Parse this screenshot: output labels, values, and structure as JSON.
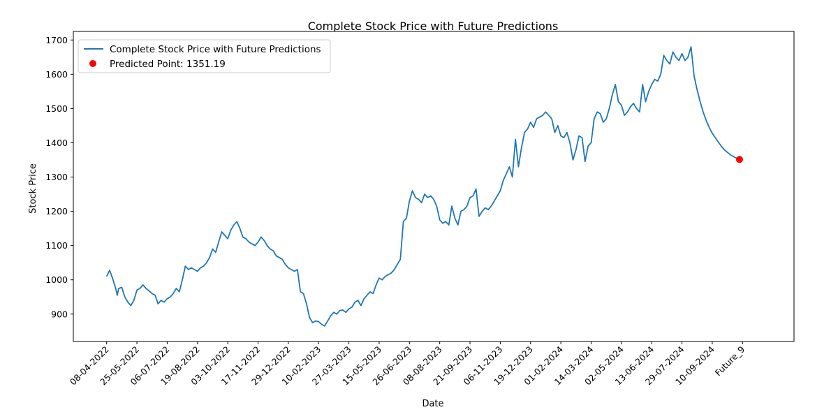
{
  "chart_data": {
    "type": "line",
    "title": "Complete Stock Price with Future Predictions",
    "xlabel": "Date",
    "ylabel": "Stock Price",
    "ylim": [
      820,
      1725
    ],
    "yticks": [
      900,
      1000,
      1100,
      1200,
      1300,
      1400,
      1500,
      1600,
      1700
    ],
    "xlim": [
      -11,
      227
    ],
    "x_tick_labels": [
      {
        "x": 0,
        "label": "08-04-2022"
      },
      {
        "x": 10,
        "label": "25-05-2022"
      },
      {
        "x": 20,
        "label": "06-07-2022"
      },
      {
        "x": 30,
        "label": "19-08-2022"
      },
      {
        "x": 40,
        "label": "03-10-2022"
      },
      {
        "x": 50,
        "label": "17-11-2022"
      },
      {
        "x": 60,
        "label": "29-12-2022"
      },
      {
        "x": 70,
        "label": "10-02-2023"
      },
      {
        "x": 80,
        "label": "27-03-2023"
      },
      {
        "x": 90,
        "label": "15-05-2023"
      },
      {
        "x": 100,
        "label": "26-06-2023"
      },
      {
        "x": 110,
        "label": "08-08-2023"
      },
      {
        "x": 120,
        "label": "21-09-2023"
      },
      {
        "x": 130,
        "label": "06-11-2023"
      },
      {
        "x": 140,
        "label": "19-12-2023"
      },
      {
        "x": 150,
        "label": "01-02-2024"
      },
      {
        "x": 160,
        "label": "14-03-2024"
      },
      {
        "x": 170,
        "label": "02-05-2024"
      },
      {
        "x": 180,
        "label": "13-06-2024"
      },
      {
        "x": 190,
        "label": "29-07-2024"
      },
      {
        "x": 200,
        "label": "10-09-2024"
      },
      {
        "x": 210,
        "label": "Future_9"
      }
    ],
    "series": [
      {
        "name": "Complete Stock Price with Future Predictions",
        "color": "#1f77b4",
        "points": [
          [
            0,
            1010
          ],
          [
            1,
            1028
          ],
          [
            2,
            1003
          ],
          [
            3,
            975
          ],
          [
            3.5,
            955
          ],
          [
            4,
            975
          ],
          [
            5,
            978
          ],
          [
            6,
            950
          ],
          [
            7,
            935
          ],
          [
            8,
            925
          ],
          [
            9,
            940
          ],
          [
            10,
            970
          ],
          [
            11,
            975
          ],
          [
            12,
            985
          ],
          [
            13,
            975
          ],
          [
            14,
            968
          ],
          [
            15,
            960
          ],
          [
            16,
            955
          ],
          [
            17,
            930
          ],
          [
            18,
            940
          ],
          [
            19,
            935
          ],
          [
            20,
            945
          ],
          [
            21,
            950
          ],
          [
            22,
            960
          ],
          [
            23,
            975
          ],
          [
            24,
            965
          ],
          [
            25,
            1000
          ],
          [
            26,
            1040
          ],
          [
            27,
            1030
          ],
          [
            28,
            1035
          ],
          [
            29,
            1030
          ],
          [
            30,
            1025
          ],
          [
            31,
            1035
          ],
          [
            32,
            1040
          ],
          [
            33,
            1050
          ],
          [
            34,
            1065
          ],
          [
            35,
            1090
          ],
          [
            36,
            1080
          ],
          [
            37,
            1110
          ],
          [
            38,
            1140
          ],
          [
            39,
            1130
          ],
          [
            40,
            1120
          ],
          [
            41,
            1145
          ],
          [
            42,
            1160
          ],
          [
            43,
            1170
          ],
          [
            44,
            1150
          ],
          [
            45,
            1125
          ],
          [
            46,
            1120
          ],
          [
            47,
            1110
          ],
          [
            48,
            1105
          ],
          [
            49,
            1100
          ],
          [
            50,
            1110
          ],
          [
            51,
            1125
          ],
          [
            52,
            1115
          ],
          [
            53,
            1100
          ],
          [
            54,
            1090
          ],
          [
            55,
            1085
          ],
          [
            56,
            1070
          ],
          [
            57,
            1065
          ],
          [
            58,
            1060
          ],
          [
            59,
            1045
          ],
          [
            60,
            1035
          ],
          [
            61,
            1030
          ],
          [
            62,
            1025
          ],
          [
            63,
            1030
          ],
          [
            64,
            965
          ],
          [
            65,
            960
          ],
          [
            66,
            930
          ],
          [
            67,
            890
          ],
          [
            68,
            875
          ],
          [
            69,
            880
          ],
          [
            70,
            878
          ],
          [
            71,
            870
          ],
          [
            72,
            865
          ],
          [
            73,
            880
          ],
          [
            74,
            895
          ],
          [
            75,
            905
          ],
          [
            76,
            900
          ],
          [
            77,
            910
          ],
          [
            78,
            912
          ],
          [
            79,
            905
          ],
          [
            80,
            915
          ],
          [
            81,
            920
          ],
          [
            82,
            935
          ],
          [
            83,
            940
          ],
          [
            84,
            925
          ],
          [
            85,
            945
          ],
          [
            86,
            955
          ],
          [
            87,
            965
          ],
          [
            88,
            960
          ],
          [
            89,
            985
          ],
          [
            90,
            1005
          ],
          [
            91,
            1000
          ],
          [
            92,
            1010
          ],
          [
            93,
            1015
          ],
          [
            94,
            1020
          ],
          [
            95,
            1030
          ],
          [
            96,
            1045
          ],
          [
            97,
            1060
          ],
          [
            98,
            1170
          ],
          [
            99,
            1180
          ],
          [
            100,
            1230
          ],
          [
            101,
            1260
          ],
          [
            102,
            1240
          ],
          [
            103,
            1235
          ],
          [
            104,
            1225
          ],
          [
            105,
            1250
          ],
          [
            106,
            1240
          ],
          [
            107,
            1245
          ],
          [
            108,
            1235
          ],
          [
            109,
            1215
          ],
          [
            110,
            1175
          ],
          [
            111,
            1165
          ],
          [
            112,
            1170
          ],
          [
            113,
            1160
          ],
          [
            114,
            1215
          ],
          [
            115,
            1180
          ],
          [
            116,
            1160
          ],
          [
            117,
            1200
          ],
          [
            118,
            1205
          ],
          [
            119,
            1215
          ],
          [
            120,
            1240
          ],
          [
            121,
            1245
          ],
          [
            122,
            1265
          ],
          [
            123,
            1185
          ],
          [
            124,
            1200
          ],
          [
            125,
            1210
          ],
          [
            126,
            1205
          ],
          [
            127,
            1215
          ],
          [
            128,
            1230
          ],
          [
            129,
            1245
          ],
          [
            130,
            1260
          ],
          [
            131,
            1290
          ],
          [
            132,
            1310
          ],
          [
            133,
            1330
          ],
          [
            134,
            1300
          ],
          [
            135,
            1410
          ],
          [
            136,
            1330
          ],
          [
            137,
            1385
          ],
          [
            138,
            1430
          ],
          [
            139,
            1440
          ],
          [
            140,
            1460
          ],
          [
            141,
            1445
          ],
          [
            142,
            1470
          ],
          [
            143,
            1475
          ],
          [
            144,
            1480
          ],
          [
            145,
            1490
          ],
          [
            146,
            1480
          ],
          [
            147,
            1470
          ],
          [
            148,
            1430
          ],
          [
            149,
            1450
          ],
          [
            150,
            1420
          ],
          [
            151,
            1415
          ],
          [
            152,
            1430
          ],
          [
            153,
            1400
          ],
          [
            154,
            1350
          ],
          [
            155,
            1380
          ],
          [
            156,
            1420
          ],
          [
            157,
            1415
          ],
          [
            158,
            1345
          ],
          [
            159,
            1390
          ],
          [
            160,
            1400
          ],
          [
            161,
            1470
          ],
          [
            162,
            1490
          ],
          [
            163,
            1485
          ],
          [
            164,
            1460
          ],
          [
            165,
            1470
          ],
          [
            166,
            1500
          ],
          [
            167,
            1540
          ],
          [
            168,
            1570
          ],
          [
            169,
            1520
          ],
          [
            170,
            1510
          ],
          [
            171,
            1480
          ],
          [
            172,
            1490
          ],
          [
            173,
            1505
          ],
          [
            174,
            1515
          ],
          [
            175,
            1500
          ],
          [
            176,
            1490
          ],
          [
            177,
            1570
          ],
          [
            178,
            1520
          ],
          [
            179,
            1550
          ],
          [
            180,
            1570
          ],
          [
            181,
            1585
          ],
          [
            182,
            1580
          ],
          [
            183,
            1600
          ],
          [
            184,
            1655
          ],
          [
            185,
            1640
          ],
          [
            186,
            1630
          ],
          [
            187,
            1665
          ],
          [
            188,
            1650
          ],
          [
            189,
            1640
          ],
          [
            190,
            1660
          ],
          [
            191,
            1640
          ],
          [
            192,
            1650
          ],
          [
            193,
            1680
          ],
          [
            194,
            1595
          ],
          [
            195,
            1555
          ],
          [
            196,
            1520
          ],
          [
            197,
            1490
          ],
          [
            198,
            1465
          ],
          [
            199,
            1445
          ],
          [
            200,
            1428
          ],
          [
            201,
            1415
          ],
          [
            202,
            1402
          ],
          [
            203,
            1390
          ],
          [
            204,
            1380
          ],
          [
            205,
            1372
          ],
          [
            206,
            1365
          ],
          [
            207,
            1360
          ],
          [
            208,
            1355
          ],
          [
            209,
            1351.19
          ]
        ]
      },
      {
        "name": "Predicted Point: 1351.19",
        "type": "scatter",
        "color": "#ff0000",
        "points": [
          [
            209,
            1351.19
          ]
        ]
      }
    ],
    "legend": "top-left",
    "grid": false
  }
}
